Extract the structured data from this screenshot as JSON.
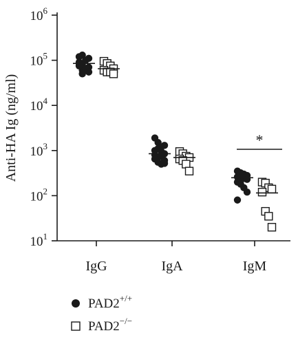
{
  "chart_data": {
    "type": "scatter",
    "yscale": "log",
    "ylim": [
      10,
      1000000
    ],
    "ylabel": "Anti-HA Ig (ng/ml)",
    "y_ticks": [
      {
        "value": 10,
        "base": "10",
        "exp": "1"
      },
      {
        "value": 100,
        "base": "10",
        "exp": "2"
      },
      {
        "value": 1000,
        "base": "10",
        "exp": "3"
      },
      {
        "value": 10000,
        "base": "10",
        "exp": "4"
      },
      {
        "value": 100000,
        "base": "10",
        "exp": "5"
      },
      {
        "value": 1000000,
        "base": "10",
        "exp": "6"
      }
    ],
    "categories": [
      "IgG",
      "IgA",
      "IgM"
    ],
    "series": [
      {
        "name_base": "PAD2",
        "name_sup": "+/+",
        "marker": "filled-circle",
        "color": "#1a1a1a",
        "points": [
          [
            120000,
            130000,
            100000,
            110000,
            90000,
            80000,
            100000,
            70000,
            85000,
            60000,
            65000,
            55000,
            75000,
            50000
          ],
          [
            1900,
            1500,
            1200,
            1300,
            1000,
            1100,
            950,
            850,
            800,
            700,
            750,
            600,
            650,
            550,
            500,
            520
          ],
          [
            350,
            320,
            300,
            280,
            260,
            250,
            240,
            230,
            200,
            180,
            150,
            120,
            80
          ]
        ],
        "means": [
          85000,
          850,
          250
        ]
      },
      {
        "name_base": "PAD2",
        "name_sup": "−/−",
        "marker": "open-square",
        "color": "#1a1a1a",
        "points": [
          [
            95000,
            85000,
            75000,
            65000,
            60000,
            55000,
            55000,
            50000
          ],
          [
            950,
            850,
            750,
            700,
            650,
            600,
            500,
            350
          ],
          [
            200,
            190,
            150,
            140,
            120,
            45,
            35,
            20
          ]
        ],
        "means": [
          65000,
          700,
          115
        ]
      }
    ],
    "annotations": [
      {
        "type": "significance",
        "text": "*",
        "category": "IgM"
      }
    ],
    "legend_position": "bottom-left",
    "grid": false
  }
}
